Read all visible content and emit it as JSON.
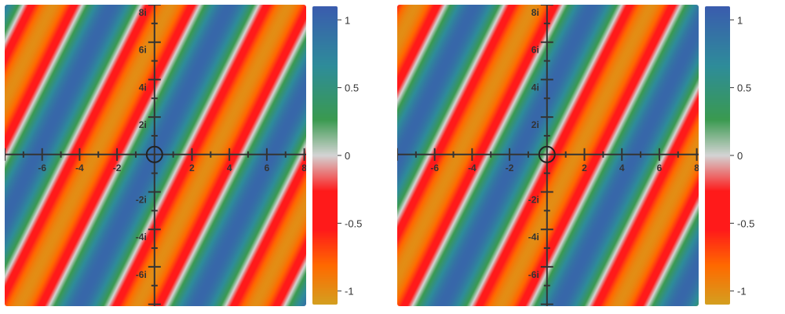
{
  "chart_data": [
    {
      "type": "heatmap",
      "title": "",
      "xlabel": "",
      "ylabel": "",
      "x_range": [
        -8,
        8.1
      ],
      "y_range": [
        -8.1,
        8
      ],
      "x_ticks": [
        -6,
        -4,
        -2,
        2,
        4,
        6,
        8
      ],
      "x_tick_labels": [
        "-6",
        "-4",
        "-2",
        "2",
        "4",
        "6",
        "8"
      ],
      "y_ticks": [
        8,
        6,
        4,
        2,
        -2,
        -4,
        -6
      ],
      "y_tick_labels": [
        "8i",
        "6i",
        "4i",
        "2i",
        "-2i",
        "-4i",
        "-6i"
      ],
      "origin_marker": "circle",
      "field": {
        "k_real": 1.0,
        "k_imag": -0.5,
        "phase": 0.0
      },
      "colorbar": {
        "range": [
          -1.1,
          1.1
        ],
        "ticks": [
          1,
          0.5,
          0,
          -0.5,
          -1
        ],
        "tick_labels": [
          "1",
          "0.5",
          "0",
          "-0.5",
          "-1"
        ],
        "colors": [
          "#d4a020",
          "#ff6a00",
          "#ff1a1a",
          "#ff1a1a",
          "#d4d4d4",
          "#3a9a50",
          "#2e8c9a",
          "#3a5cae"
        ],
        "stops": [
          0.0,
          0.13,
          0.25,
          0.38,
          0.5,
          0.62,
          0.8,
          1.0
        ]
      }
    },
    {
      "type": "heatmap",
      "title": "",
      "xlabel": "",
      "ylabel": "",
      "x_range": [
        -8,
        8.1
      ],
      "y_range": [
        -8.1,
        8
      ],
      "x_ticks": [
        -6,
        -4,
        -2,
        2,
        4,
        6,
        8
      ],
      "x_tick_labels": [
        "-6",
        "-4",
        "-2",
        "2",
        "4",
        "6",
        "8"
      ],
      "y_ticks": [
        8,
        6,
        4,
        2,
        -2,
        -4,
        -6
      ],
      "y_tick_labels": [
        "8i",
        "6i",
        "4i",
        "2i",
        "-2i",
        "-4i",
        "-6i"
      ],
      "origin_marker": "circle",
      "field": {
        "k_real": 1.0,
        "k_imag": -0.5,
        "phase": 1.5708
      },
      "colorbar": {
        "range": [
          -1.1,
          1.1
        ],
        "ticks": [
          1,
          0.5,
          0,
          -0.5,
          -1
        ],
        "tick_labels": [
          "1",
          "0.5",
          "0",
          "-0.5",
          "-1"
        ],
        "colors": [
          "#d4a020",
          "#ff6a00",
          "#ff1a1a",
          "#ff1a1a",
          "#d4d4d4",
          "#3a9a50",
          "#2e8c9a",
          "#3a5cae"
        ],
        "stops": [
          0.0,
          0.13,
          0.25,
          0.38,
          0.5,
          0.62,
          0.8,
          1.0
        ]
      }
    }
  ]
}
